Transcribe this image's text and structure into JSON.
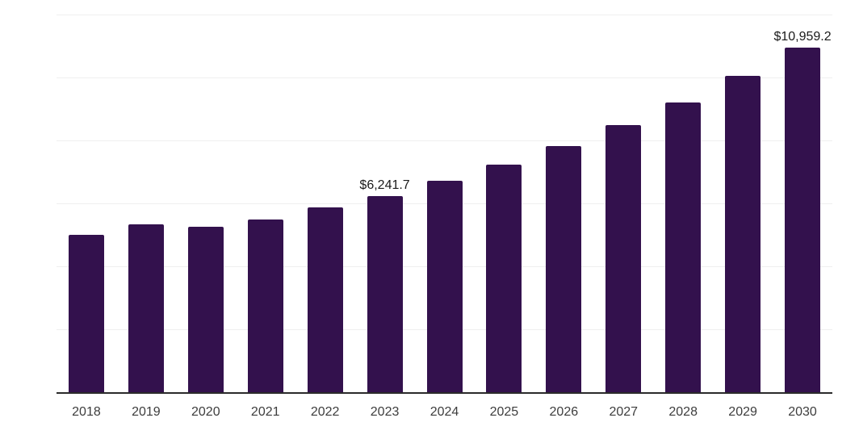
{
  "chart_data": {
    "type": "bar",
    "title": "",
    "xlabel": "",
    "ylabel": "",
    "categories": [
      "2018",
      "2019",
      "2020",
      "2021",
      "2022",
      "2023",
      "2024",
      "2025",
      "2026",
      "2027",
      "2028",
      "2029",
      "2030"
    ],
    "values": [
      5000,
      5330,
      5260,
      5480,
      5870,
      6241.7,
      6710,
      7220,
      7820,
      8490,
      9210,
      10040,
      10959.2
    ],
    "data_labels": {
      "2023": "$6,241.7",
      "2030": "$10,959.2"
    },
    "ylim": [
      0,
      12000
    ],
    "gridline_step": 2000,
    "grid": "horizontal",
    "legend": "none",
    "y_axis_labels_visible": false
  },
  "colors": {
    "bar": "#33114d",
    "axis_line": "#2b2b2b",
    "gridline": "#efefef",
    "tick_label": "#3d3d3d",
    "value_label": "#1a1a1a",
    "background": "#ffffff"
  }
}
